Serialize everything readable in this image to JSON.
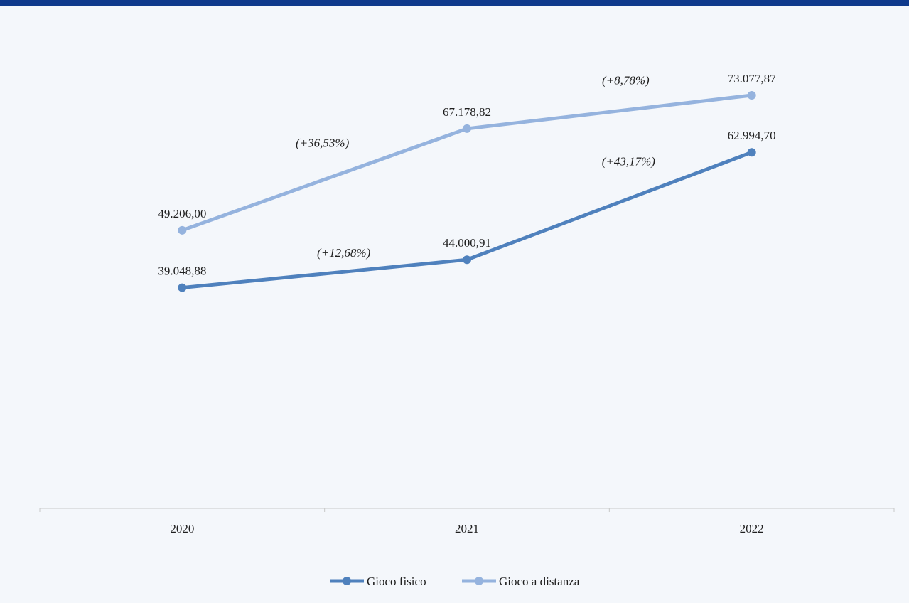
{
  "header_bar_color": "#0f3a8c",
  "chart_data": {
    "type": "line",
    "title": "",
    "xlabel": "",
    "ylabel": "",
    "categories": [
      "2020",
      "2021",
      "2022"
    ],
    "ylim": [
      0,
      80000
    ],
    "grid": false,
    "legend_position": "bottom",
    "series": [
      {
        "name": "Gioco fisico",
        "color": "#4f81bd",
        "values": [
          39048.88,
          44000.91,
          62994.7
        ],
        "value_labels": [
          "39.048,88",
          "44.000,91",
          "62.994,70"
        ],
        "growth_labels": [
          "(+12,68%)",
          "(+43,17%)"
        ]
      },
      {
        "name": "Gioco a distanza",
        "color": "#95b3de",
        "values": [
          49206.0,
          67178.82,
          73077.87
        ],
        "value_labels": [
          "49.206,00",
          "67.178,82",
          "73.077,87"
        ],
        "growth_labels": [
          "(+36,53%)",
          "(+8,78%)"
        ]
      }
    ]
  }
}
